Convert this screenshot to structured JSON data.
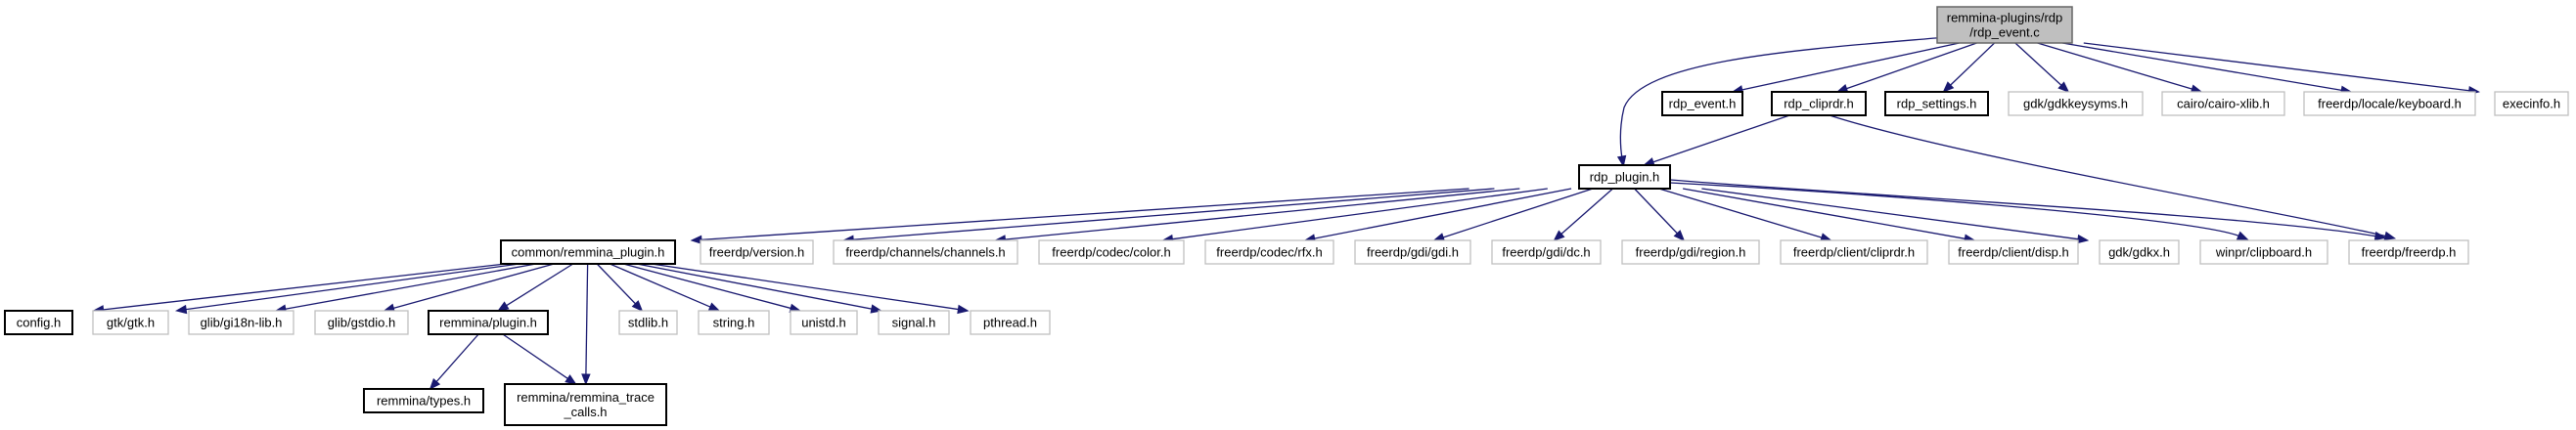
{
  "diagram": {
    "colors": {
      "edge": "#191970",
      "root_fill": "#bfbfbf",
      "root_stroke": "#666666",
      "linked_stroke": "#000000",
      "external_stroke": "#bfbfbf"
    },
    "nodes": [
      {
        "id": "root",
        "lines": [
          "remmina-plugins/rdp",
          "/rdp_event.c"
        ],
        "kind": "root"
      },
      {
        "id": "rdp_event_h",
        "lines": [
          "rdp_event.h"
        ],
        "kind": "linked"
      },
      {
        "id": "rdp_cliprdr_h",
        "lines": [
          "rdp_cliprdr.h"
        ],
        "kind": "linked"
      },
      {
        "id": "rdp_settings_h",
        "lines": [
          "rdp_settings.h"
        ],
        "kind": "linked"
      },
      {
        "id": "gdkkeysyms_h",
        "lines": [
          "gdk/gdkkeysyms.h"
        ],
        "kind": "external"
      },
      {
        "id": "cairo_xlib_h",
        "lines": [
          "cairo/cairo-xlib.h"
        ],
        "kind": "external"
      },
      {
        "id": "keyboard_h",
        "lines": [
          "freerdp/locale/keyboard.h"
        ],
        "kind": "external"
      },
      {
        "id": "execinfo_h",
        "lines": [
          "execinfo.h"
        ],
        "kind": "external"
      },
      {
        "id": "rdp_plugin_h",
        "lines": [
          "rdp_plugin.h"
        ],
        "kind": "linked"
      },
      {
        "id": "remmina_plugin_common_h",
        "lines": [
          "common/remmina_plugin.h"
        ],
        "kind": "linked"
      },
      {
        "id": "version_h",
        "lines": [
          "freerdp/version.h"
        ],
        "kind": "external"
      },
      {
        "id": "channels_h",
        "lines": [
          "freerdp/channels/channels.h"
        ],
        "kind": "external"
      },
      {
        "id": "color_h",
        "lines": [
          "freerdp/codec/color.h"
        ],
        "kind": "external"
      },
      {
        "id": "rfx_h",
        "lines": [
          "freerdp/codec/rfx.h"
        ],
        "kind": "external"
      },
      {
        "id": "gdi_h",
        "lines": [
          "freerdp/gdi/gdi.h"
        ],
        "kind": "external"
      },
      {
        "id": "dc_h",
        "lines": [
          "freerdp/gdi/dc.h"
        ],
        "kind": "external"
      },
      {
        "id": "region_h",
        "lines": [
          "freerdp/gdi/region.h"
        ],
        "kind": "external"
      },
      {
        "id": "client_cliprdr_h",
        "lines": [
          "freerdp/client/cliprdr.h"
        ],
        "kind": "external"
      },
      {
        "id": "disp_h",
        "lines": [
          "freerdp/client/disp.h"
        ],
        "kind": "external"
      },
      {
        "id": "gdkx_h",
        "lines": [
          "gdk/gdkx.h"
        ],
        "kind": "external"
      },
      {
        "id": "winpr_clipboard_h",
        "lines": [
          "winpr/clipboard.h"
        ],
        "kind": "external"
      },
      {
        "id": "freerdp_h",
        "lines": [
          "freerdp/freerdp.h"
        ],
        "kind": "external"
      },
      {
        "id": "config_h",
        "lines": [
          "config.h"
        ],
        "kind": "linked"
      },
      {
        "id": "gtk_h",
        "lines": [
          "gtk/gtk.h"
        ],
        "kind": "external"
      },
      {
        "id": "gi18n_h",
        "lines": [
          "glib/gi18n-lib.h"
        ],
        "kind": "external"
      },
      {
        "id": "gstdio_h",
        "lines": [
          "glib/gstdio.h"
        ],
        "kind": "external"
      },
      {
        "id": "remmina_plugin_h",
        "lines": [
          "remmina/plugin.h"
        ],
        "kind": "linked"
      },
      {
        "id": "stdlib_h",
        "lines": [
          "stdlib.h"
        ],
        "kind": "external"
      },
      {
        "id": "string_h",
        "lines": [
          "string.h"
        ],
        "kind": "external"
      },
      {
        "id": "unistd_h",
        "lines": [
          "unistd.h"
        ],
        "kind": "external"
      },
      {
        "id": "signal_h",
        "lines": [
          "signal.h"
        ],
        "kind": "external"
      },
      {
        "id": "pthread_h",
        "lines": [
          "pthread.h"
        ],
        "kind": "external"
      },
      {
        "id": "types_h",
        "lines": [
          "remmina/types.h"
        ],
        "kind": "linked"
      },
      {
        "id": "trace_calls_h",
        "lines": [
          "remmina/remmina_trace",
          "_calls.h"
        ],
        "kind": "linked"
      }
    ],
    "edges": [
      [
        "root",
        "rdp_event_h"
      ],
      [
        "root",
        "rdp_cliprdr_h"
      ],
      [
        "root",
        "rdp_settings_h"
      ],
      [
        "root",
        "gdkkeysyms_h"
      ],
      [
        "root",
        "cairo_xlib_h"
      ],
      [
        "root",
        "keyboard_h"
      ],
      [
        "root",
        "execinfo_h"
      ],
      [
        "root",
        "rdp_plugin_h"
      ],
      [
        "rdp_cliprdr_h",
        "rdp_plugin_h"
      ],
      [
        "rdp_cliprdr_h",
        "freerdp_h"
      ],
      [
        "rdp_plugin_h",
        "remmina_plugin_common_h"
      ],
      [
        "rdp_plugin_h",
        "version_h"
      ],
      [
        "rdp_plugin_h",
        "channels_h"
      ],
      [
        "rdp_plugin_h",
        "color_h"
      ],
      [
        "rdp_plugin_h",
        "rfx_h"
      ],
      [
        "rdp_plugin_h",
        "gdi_h"
      ],
      [
        "rdp_plugin_h",
        "dc_h"
      ],
      [
        "rdp_plugin_h",
        "region_h"
      ],
      [
        "rdp_plugin_h",
        "client_cliprdr_h"
      ],
      [
        "rdp_plugin_h",
        "disp_h"
      ],
      [
        "rdp_plugin_h",
        "gdkx_h"
      ],
      [
        "rdp_plugin_h",
        "winpr_clipboard_h"
      ],
      [
        "rdp_plugin_h",
        "freerdp_h"
      ],
      [
        "remmina_plugin_common_h",
        "config_h"
      ],
      [
        "remmina_plugin_common_h",
        "gtk_h"
      ],
      [
        "remmina_plugin_common_h",
        "gi18n_h"
      ],
      [
        "remmina_plugin_common_h",
        "gstdio_h"
      ],
      [
        "remmina_plugin_common_h",
        "remmina_plugin_h"
      ],
      [
        "remmina_plugin_common_h",
        "trace_calls_h"
      ],
      [
        "remmina_plugin_common_h",
        "stdlib_h"
      ],
      [
        "remmina_plugin_common_h",
        "string_h"
      ],
      [
        "remmina_plugin_common_h",
        "unistd_h"
      ],
      [
        "remmina_plugin_common_h",
        "signal_h"
      ],
      [
        "remmina_plugin_common_h",
        "pthread_h"
      ],
      [
        "remmina_plugin_h",
        "types_h"
      ],
      [
        "remmina_plugin_h",
        "trace_calls_h"
      ]
    ]
  }
}
